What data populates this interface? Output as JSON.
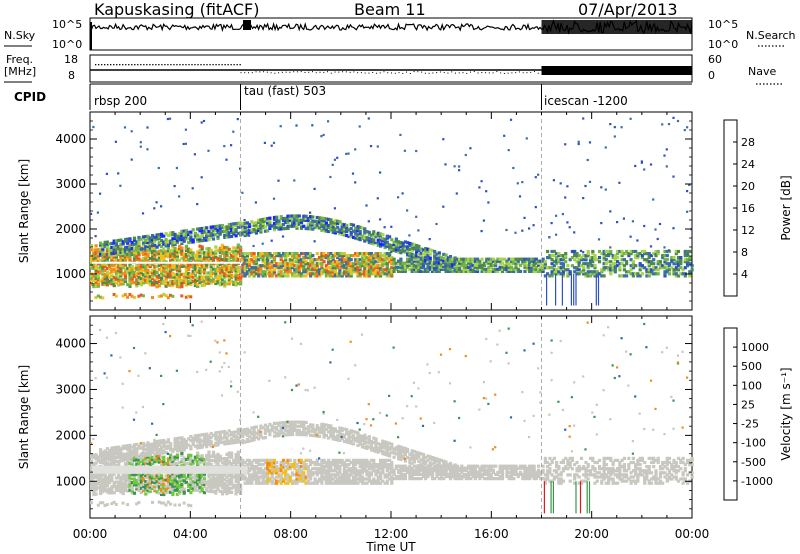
{
  "header": {
    "station": "Kapuskasing (fitACF)",
    "beam": "Beam 11",
    "date": "07/Apr/2013"
  },
  "side_labels": {
    "nsky": "N.Sky",
    "nsky_top": "10^5",
    "nsky_bottom": "10^0",
    "nsearch": "N.Search",
    "nsearch_top": "10^5",
    "nsearch_bottom": "10^0",
    "freq": "Freq.",
    "freq_unit": "[MHz]",
    "freq_top": "18",
    "freq_bottom": "8",
    "nave": "Nave",
    "nave_top": "60",
    "nave_bottom": "0",
    "cpid": "CPID"
  },
  "cpid_segments": [
    {
      "label": "rbsp 200",
      "start": 0
    },
    {
      "label": "tau (fast) 503",
      "start": 6
    },
    {
      "label": "icescan -1200",
      "start": 18
    }
  ],
  "chart_data": [
    {
      "type": "heatmap",
      "ylabel": "Slant Range [km]",
      "xlabel": "Time UT",
      "xlim": [
        0,
        24
      ],
      "ylim": [
        200,
        4600
      ],
      "yticks": [
        1000,
        2000,
        3000,
        4000
      ],
      "colorbar": {
        "label": "Power [dB]",
        "ticks": [
          "28",
          "24",
          "20",
          "16",
          "12",
          "8",
          "4"
        ],
        "colors": [
          "#1428ff",
          "#2c52c0",
          "#3a6ea8",
          "#4f8a4a",
          "#72b44a",
          "#a8d44a",
          "#f2c019",
          "#f08c1c",
          "#e85a1e",
          "#e01a1a"
        ]
      },
      "features": {
        "main_band_km": [
          900,
          1500
        ],
        "oblique_arc_peak_km": 2100,
        "arc_time_h": [
          5,
          12
        ]
      }
    },
    {
      "type": "heatmap",
      "ylabel": "Slant Range [km]",
      "xlabel": "Time UT",
      "xlim": [
        0,
        24
      ],
      "ylim": [
        200,
        4600
      ],
      "yticks": [
        1000,
        2000,
        3000,
        4000
      ],
      "colorbar": {
        "label": "Velocity [m s⁻¹]",
        "ticks": [
          "1000",
          "500",
          "100",
          "25",
          "-25",
          "-100",
          "-500",
          "-1000"
        ],
        "colors": [
          "#e01a1a",
          "#e85a1e",
          "#f08c1c",
          "#f2c019",
          "#c8c8c0",
          "#c8c8c0",
          "#72c83c",
          "#3c9450",
          "#2c6ab0",
          "#1428b4"
        ]
      }
    }
  ],
  "xaxis": {
    "ticks": [
      "00:00",
      "04:00",
      "08:00",
      "12:00",
      "16:00",
      "20:00",
      "00:00"
    ],
    "label": "Time UT"
  }
}
